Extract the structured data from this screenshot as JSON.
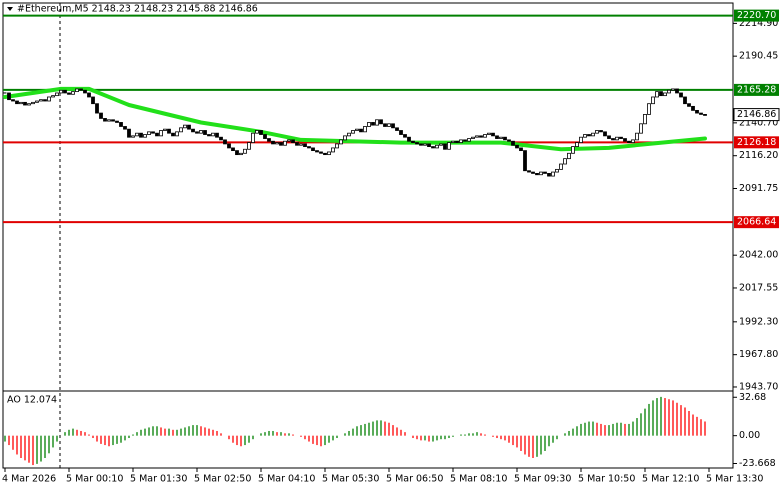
{
  "chart_data": {
    "type": "candlestick",
    "title": "#Ethereum,M5  2148.23 2148.23 2145.88 2146.86",
    "closes": [
      2163,
      2158,
      2157,
      2155,
      2156,
      2154,
      2155,
      2156,
      2157,
      2158,
      2157,
      2160,
      2161,
      2163,
      2165,
      2163,
      2162,
      2164,
      2166,
      2165,
      2163,
      2160,
      2155,
      2148,
      2144,
      2142,
      2143,
      2142,
      2141,
      2138,
      2136,
      2130,
      2131,
      2133,
      2130,
      2132,
      2134,
      2133,
      2131,
      2135,
      2136,
      2133,
      2131,
      2134,
      2137,
      2139,
      2136,
      2134,
      2133,
      2135,
      2132,
      2131,
      2133,
      2130,
      2128,
      2125,
      2122,
      2120,
      2117,
      2118,
      2121,
      2126,
      2133,
      2135,
      2132,
      2129,
      2127,
      2125,
      2126,
      2124,
      2127,
      2128,
      2126,
      2124,
      2125,
      2123,
      2122,
      2120,
      2119,
      2118,
      2117,
      2119,
      2122,
      2125,
      2128,
      2131,
      2133,
      2135,
      2136,
      2134,
      2138,
      2141,
      2139,
      2143,
      2140,
      2138,
      2140,
      2137,
      2135,
      2132,
      2130,
      2127,
      2126,
      2125,
      2124,
      2125,
      2123,
      2122,
      2124,
      2125,
      2121,
      2126,
      2127,
      2126,
      2128,
      2127,
      2129,
      2130,
      2131,
      2130,
      2132,
      2133,
      2131,
      2129,
      2130,
      2128,
      2127,
      2124,
      2122,
      2120,
      2105,
      2104,
      2103,
      2102,
      2104,
      2103,
      2101,
      2104,
      2106,
      2110,
      2114,
      2118,
      2123,
      2126,
      2130,
      2132,
      2131,
      2133,
      2135,
      2134,
      2131,
      2129,
      2128,
      2130,
      2129,
      2127,
      2126,
      2128,
      2133,
      2140,
      2147,
      2155,
      2160,
      2164,
      2161,
      2163,
      2165,
      2166,
      2163,
      2160,
      2155,
      2153,
      2150,
      2148,
      2147,
      2146.86
    ],
    "up_color": "#ffffff",
    "down_color": "#000000",
    "ylim": [
      1940.7,
      2230.1
    ],
    "yticks": [
      {
        "value": 2214.9,
        "label": "2214.90"
      },
      2190.45,
      {
        "value": 2140.7,
        "label": "2140.70"
      },
      {
        "value": 2116.2,
        "label": "2116.20"
      },
      2091.75,
      {
        "value": 2042,
        "label": "2042.00"
      },
      2017.55,
      {
        "value": 1992.3,
        "label": "1992.30"
      },
      {
        "value": 1967.8,
        "label": "1967.80"
      },
      {
        "value": 1943.7,
        "label": "1943.70"
      }
    ],
    "xlim": [
      -0.5,
      182
    ],
    "xticks": [
      {
        "value": 0,
        "label": "4 Mar 2026"
      },
      {
        "value": 16,
        "label": "5 Mar 00:10"
      },
      {
        "value": 32,
        "label": "5 Mar 01:30"
      },
      {
        "value": 48,
        "label": "5 Mar 02:50"
      },
      {
        "value": 64,
        "label": "5 Mar 04:10"
      },
      {
        "value": 80,
        "label": "5 Mar 05:30"
      },
      {
        "value": 96,
        "label": "5 Mar 06:50"
      },
      {
        "value": 112,
        "label": "5 Mar 08:10"
      },
      {
        "value": 128,
        "label": "5 Mar 09:30"
      },
      {
        "value": 144,
        "label": "5 Mar 10:50"
      },
      {
        "value": 160,
        "label": "5 Mar 12:10"
      },
      {
        "value": 176,
        "label": "5 Mar 13:30"
      }
    ],
    "levels": [
      {
        "value": 2220.7,
        "label": "2220.70",
        "color": "#008000"
      },
      {
        "value": 2165.28,
        "label": "2165.28",
        "color": "#008000"
      },
      {
        "value": 2126.18,
        "label": "2126.18",
        "color": "#e00000"
      },
      {
        "value": 2066.64,
        "label": "2066.64",
        "color": "#e00000"
      }
    ],
    "ma": {
      "x": [
        0,
        14,
        21,
        31,
        49,
        64,
        74,
        99,
        124,
        139,
        151,
        161,
        175
      ],
      "values": [
        2160,
        2166,
        2166,
        2154,
        2141,
        2134,
        2128,
        2126,
        2126,
        2121,
        2122,
        2125,
        2129
      ],
      "color": "#22e01a"
    },
    "ao": {
      "label": "AO 12.074",
      "values": [
        -5,
        -8,
        -12,
        -16,
        -19,
        -21,
        -23,
        -25,
        -24,
        -22,
        -19,
        -15,
        -10,
        -5,
        0,
        3,
        5,
        6,
        5,
        4,
        3,
        1,
        -2,
        -5,
        -7,
        -8,
        -9,
        -8,
        -7,
        -6,
        -4,
        -2,
        1,
        3,
        5,
        6,
        7,
        8,
        8,
        7,
        6,
        6,
        5,
        5,
        6,
        7,
        8,
        9,
        9,
        8,
        7,
        6,
        5,
        4,
        2,
        0,
        -3,
        -6,
        -8,
        -9,
        -8,
        -6,
        -3,
        0,
        2,
        3,
        4,
        4,
        3,
        3,
        2,
        2,
        1,
        0,
        -1,
        -3,
        -5,
        -7,
        -8,
        -9,
        -8,
        -6,
        -4,
        -2,
        0,
        2,
        4,
        6,
        8,
        9,
        10,
        11,
        12,
        13,
        13,
        12,
        11,
        9,
        7,
        5,
        3,
        0,
        -2,
        -3,
        -4,
        -4,
        -5,
        -5,
        -4,
        -3,
        -3,
        -2,
        -1,
        0,
        1,
        1,
        2,
        2,
        3,
        2,
        1,
        0,
        -1,
        -2,
        -3,
        -4,
        -6,
        -8,
        -10,
        -13,
        -16,
        -18,
        -19,
        -18,
        -16,
        -13,
        -9,
        -6,
        -3,
        0,
        2,
        4,
        6,
        8,
        10,
        11,
        12,
        12,
        11,
        10,
        9,
        9,
        10,
        11,
        11,
        10,
        10,
        12,
        15,
        19,
        23,
        27,
        30,
        32,
        33,
        32,
        31,
        30,
        28,
        26,
        24,
        21,
        18,
        16,
        14,
        12.074
      ],
      "up_color": "#008000",
      "down_color": "#ff0000",
      "ylim": [
        -27.5,
        38
      ],
      "yticks": [
        32.68,
        {
          "value": 0,
          "label": "0.00"
        },
        -23.668
      ]
    }
  }
}
